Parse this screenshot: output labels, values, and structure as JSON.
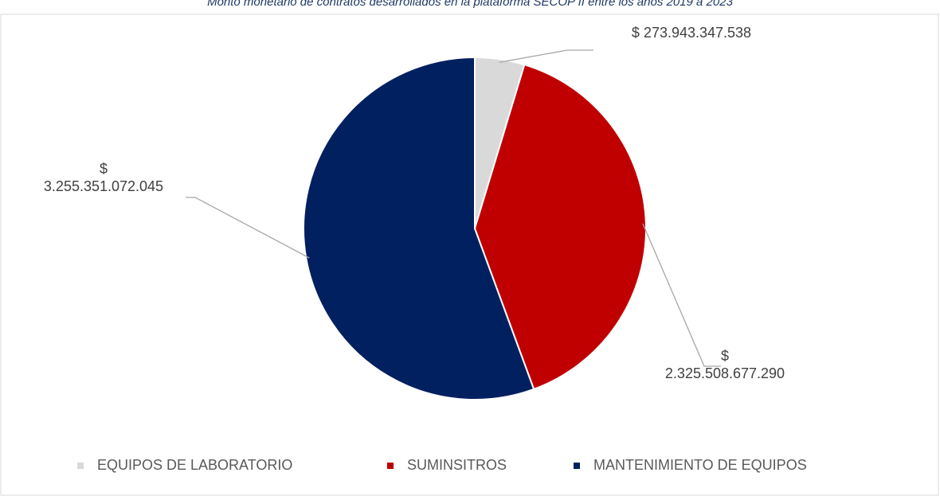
{
  "chart_data": {
    "type": "pie",
    "title": "Monto monetario de contratos desarrollados en la plataforma SECOP II entre los años 2019 a 2023",
    "categories": [
      "EQUIPOS DE LABORATORIO",
      "SUMINSITROS",
      "MANTENIMIENTO DE EQUIPOS"
    ],
    "values": [
      273943347538,
      2325508677290,
      3255351072045
    ],
    "value_labels": [
      "$ 273.943.347.538",
      "$ 2.325.508.677.290",
      "$ 3.255.351.072.045"
    ],
    "colors": [
      "#d9d9d9",
      "#c00000",
      "#002060"
    ],
    "legend": "bottom"
  }
}
